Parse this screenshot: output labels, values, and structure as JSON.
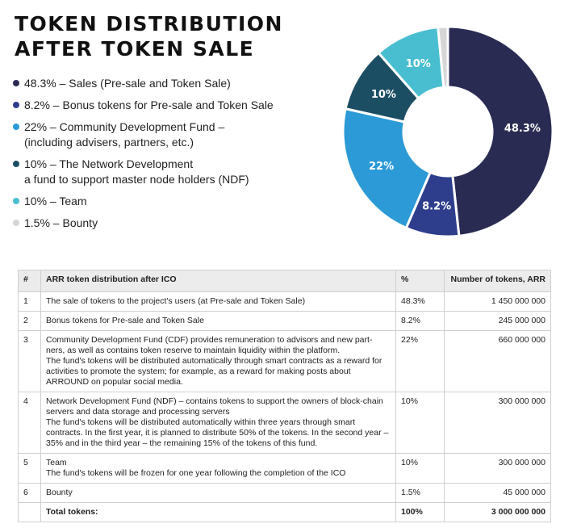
{
  "title_lines": [
    "TOKEN DISTRIBUTION",
    "AFTER TOKEN SALE"
  ],
  "legend": [
    {
      "pct": "48.3%",
      "text": " – Sales (Pre-sale and Token Sale)",
      "color": "#2a2b52"
    },
    {
      "pct": "8.2%",
      "text": " – Bonus tokens for Pre-sale and Token Sale",
      "color": "#2e3d8c"
    },
    {
      "pct": "22%",
      "text": " – Community Development Fund –\n(including advisers, partners, etc.)",
      "color": "#2b9ad6"
    },
    {
      "pct": "10%",
      "text": " – The Network Development\na fund to support master node holders (NDF)",
      "color": "#1c4e63"
    },
    {
      "pct": "10%",
      "text": " – Team",
      "color": "#49bed0"
    },
    {
      "pct": "1.5%",
      "text": " – Bounty",
      "color": "#d6d6d6"
    }
  ],
  "chart_data": {
    "type": "pie",
    "donut": true,
    "categories": [
      "Sales (Pre-sale and Token Sale)",
      "Bonus tokens for Pre-sale and Token Sale",
      "Community Development Fund",
      "The Network Development",
      "Team",
      "Bounty"
    ],
    "values": [
      48.3,
      8.2,
      22,
      10,
      10,
      1.5
    ],
    "labels": [
      "48.3%",
      "8.2%",
      "22%",
      "10%",
      "10%",
      ""
    ],
    "colors": [
      "#2a2b52",
      "#2e3d8c",
      "#2b9ad6",
      "#1c4e63",
      "#49bed0",
      "#d6d6d6"
    ]
  },
  "table": {
    "headers": [
      "#",
      "ARR token distribution after ICO",
      "%",
      "Number of tokens, ARR"
    ],
    "rows": [
      {
        "n": "1",
        "desc": [
          "The sale of tokens to the project's users (at Pre-sale and Token Sale)"
        ],
        "pct": "48.3%",
        "tokens": "1 450 000 000"
      },
      {
        "n": "2",
        "desc": [
          "Bonus tokens for Pre-sale and Token Sale"
        ],
        "pct": "8.2%",
        "tokens": "245 000 000"
      },
      {
        "n": "3",
        "desc": [
          "Community Development Fund (CDF) provides remuneration to advisors and new part-ners, as well as contains token reserve to maintain liquidity within the platform.",
          "The fund's tokens will be distributed automatically through smart contracts as a reward for activities to promote the system; for example, as a reward for making posts about ARROUND on popular social media."
        ],
        "pct": "22%",
        "tokens": "660 000 000"
      },
      {
        "n": "4",
        "desc": [
          "Network Development Fund (NDF) – contains tokens to support the owners of block-chain servers and data storage and processing servers",
          "The fund's tokens will be distributed automatically within three years through smart contracts. In the first year, it is planned to distribute 50% of the tokens. In the second year – 35% and in the third year – the remaining 15% of the tokens of this fund."
        ],
        "pct": "10%",
        "tokens": "300 000 000"
      },
      {
        "n": "5",
        "desc": [
          "Team",
          "The fund's tokens will be frozen for one year following the completion of the ICO"
        ],
        "pct": "10%",
        "tokens": "300 000 000"
      },
      {
        "n": "6",
        "desc": [
          "Bounty"
        ],
        "pct": "1.5%",
        "tokens": "45 000 000"
      }
    ],
    "total": {
      "label": "Total tokens:",
      "pct": "100%",
      "tokens": "3 000 000 000"
    }
  }
}
